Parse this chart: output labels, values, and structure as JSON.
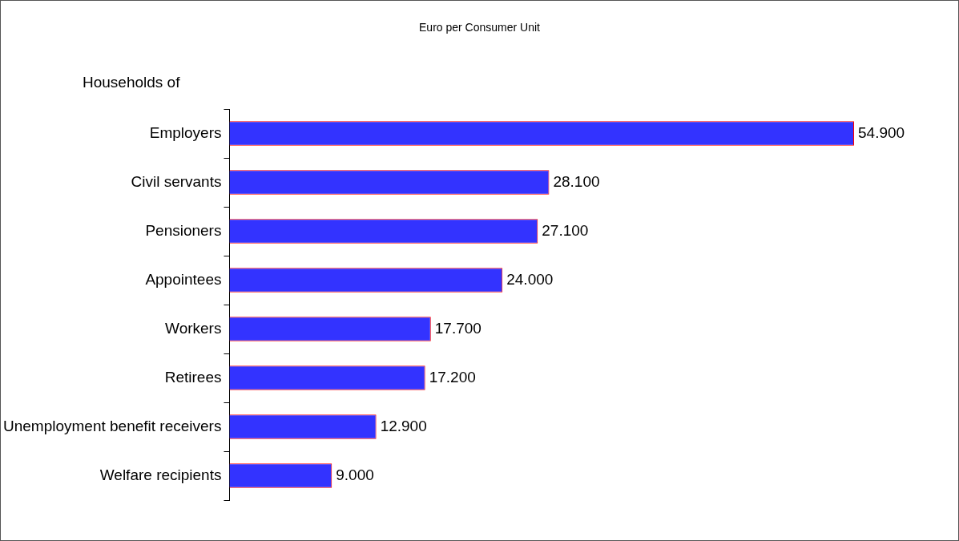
{
  "chart_data": {
    "type": "bar",
    "orientation": "horizontal",
    "title": "Euro per Consumer Unit",
    "ylabel": "Households of",
    "categories": [
      "Employers",
      "Civil servants",
      "Pensioners",
      "Appointees",
      "Workers",
      "Retirees",
      "Unemployment benefit receivers",
      "Welfare recipients"
    ],
    "values": [
      54900,
      28100,
      27100,
      24000,
      17700,
      17200,
      12900,
      9000
    ],
    "value_labels": [
      "54.900",
      "28.100",
      "27.100",
      "24.000",
      "17.700",
      "17.200",
      "12.900",
      "9.000"
    ],
    "color": "#3333ff",
    "grid": false,
    "legend": false
  }
}
